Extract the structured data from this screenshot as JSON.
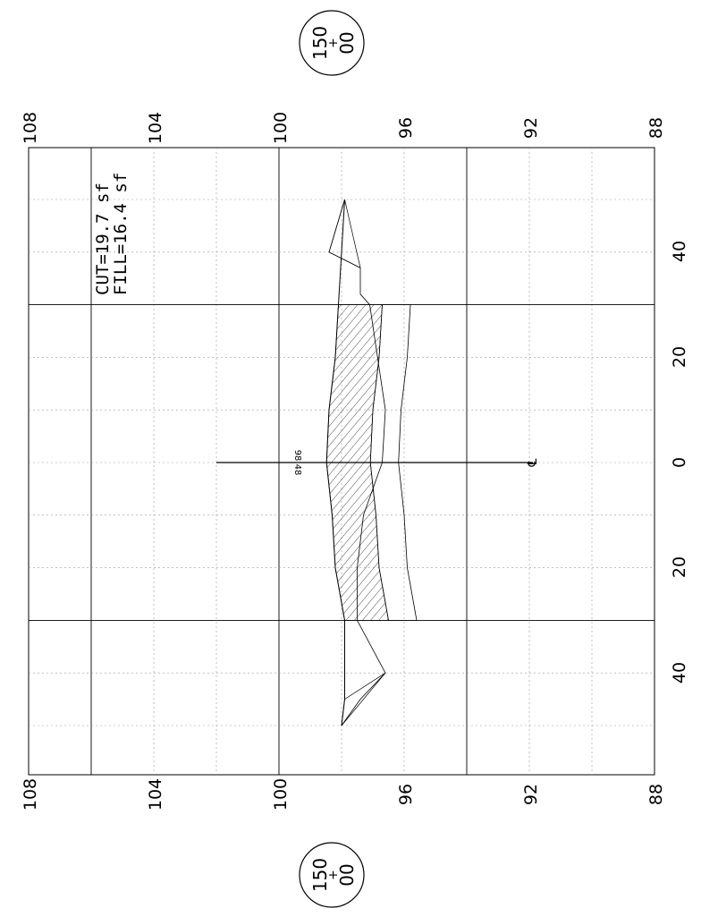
{
  "drawing": {
    "station": {
      "top": "150",
      "sign": "+",
      "bottom": "00"
    },
    "quantities": {
      "cut": "CUT=19.7 sf",
      "fill": "FILL=16.4 sf"
    },
    "elevation_scale": [
      "108",
      "104",
      "100",
      "96",
      "92",
      "88"
    ],
    "offset_scale": [
      "40",
      "20",
      "0",
      "20",
      "40"
    ],
    "centerline": {
      "elevation_label": "98.48",
      "symbol": "℄"
    }
  },
  "colors": {
    "line": "#000000",
    "grid_dashed": "#9a9a9a",
    "background": "#ffffff"
  },
  "chart_data": {
    "type": "cross-section",
    "station": "150+00",
    "cut_area_sf": 19.7,
    "fill_area_sf": 16.4,
    "centerline_elevation": 98.48,
    "elevation_axis": {
      "ticks": [
        108,
        104,
        100,
        96,
        92,
        88
      ],
      "range": [
        88,
        108
      ]
    },
    "offset_axis": {
      "ticks": [
        -40,
        -20,
        0,
        20,
        40
      ],
      "range": [
        -55,
        55
      ]
    },
    "existing_ground": [
      [
        -50,
        97.9
      ],
      [
        -40,
        98.4
      ],
      [
        -37,
        97.4
      ],
      [
        -32,
        97.4
      ],
      [
        -30,
        97.1
      ],
      [
        -10,
        96.6
      ],
      [
        0,
        96.7
      ],
      [
        10,
        97.3
      ],
      [
        20,
        97.5
      ],
      [
        30,
        97.5
      ],
      [
        40,
        96.6
      ],
      [
        45,
        97.4
      ],
      [
        50,
        98.0
      ]
    ],
    "proposed_surface": [
      [
        -50,
        97.9
      ],
      [
        -30,
        98.1
      ],
      [
        -20,
        98.2
      ],
      [
        -10,
        98.4
      ],
      [
        0,
        98.48
      ],
      [
        10,
        98.3
      ],
      [
        20,
        98.2
      ],
      [
        30,
        97.9
      ],
      [
        45,
        97.9
      ],
      [
        50,
        98.0
      ]
    ]
  }
}
